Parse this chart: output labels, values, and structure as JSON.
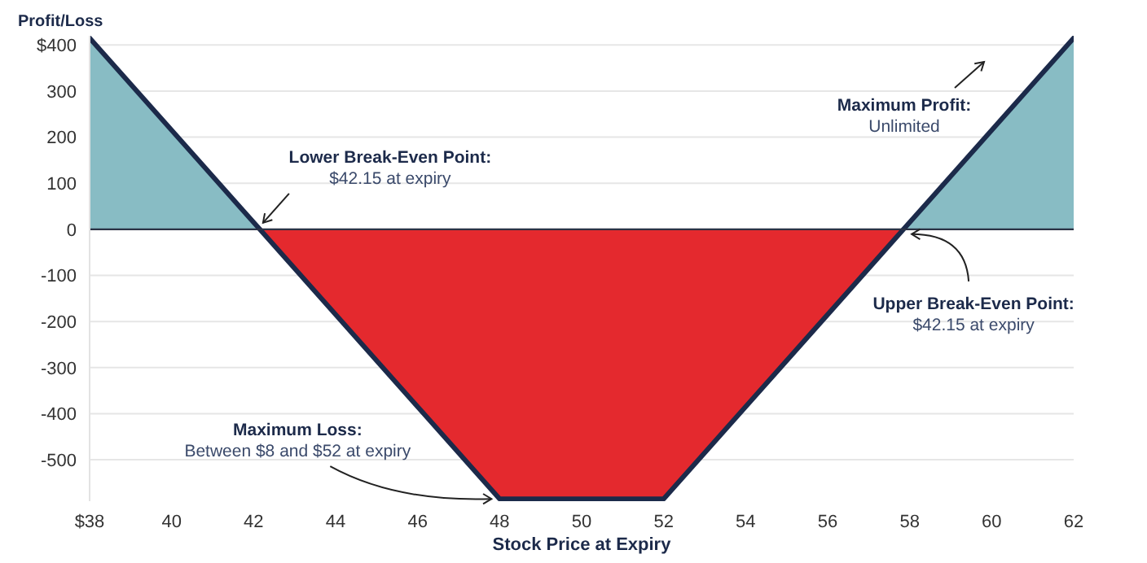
{
  "chart_data": {
    "type": "line",
    "xlabel": "Stock Price at Expiry",
    "ylabel": "Profit/Loss",
    "xlim": [
      38,
      62
    ],
    "ylim": [
      -590,
      420
    ],
    "xticks": [
      {
        "value": 38,
        "label": "$38"
      },
      40,
      42,
      44,
      46,
      48,
      50,
      52,
      54,
      56,
      58,
      60,
      62
    ],
    "yticks": [
      {
        "value": 400,
        "label": "$400"
      },
      300,
      200,
      100,
      0,
      -100,
      -200,
      -300,
      -400,
      -500
    ],
    "grid": "y",
    "ref_lines": [
      {
        "axis": "y",
        "value": 0,
        "color": "#2b3245"
      }
    ],
    "series": [
      {
        "type": "area",
        "color": "#88bcc4",
        "x": [
          38,
          42.15,
          57.85,
          62
        ],
        "values": [
          415,
          0,
          0,
          415
        ]
      },
      {
        "type": "area",
        "color": "#e4292e",
        "x": [
          42.15,
          48,
          52,
          57.85
        ],
        "values": [
          0,
          -585,
          -585,
          0
        ]
      },
      {
        "color": "#1c2a4a",
        "x": [
          38,
          42.15,
          48,
          52,
          57.85,
          62
        ],
        "values": [
          415,
          0,
          -585,
          -585,
          0,
          415
        ]
      }
    ],
    "annotations": [
      {
        "text": "Lower Break-Even Point:\n$42.15 at expiry",
        "x": 42.15,
        "y": 0
      },
      "Maximum Profit:\nUnlimited",
      {
        "text": "Upper Break-Even Point:\n$42.15 at expiry",
        "x": 57.85,
        "y": 0
      },
      {
        "text": "Maximum Loss:\nBetween $8 and $52 at expiry",
        "x": 48,
        "y": -585
      }
    ]
  }
}
